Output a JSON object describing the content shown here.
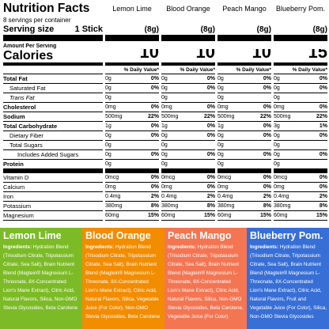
{
  "header": {
    "title": "Nutrition Facts",
    "servings": "8 servings per container",
    "serving_size_label": "Serving size",
    "serving_size": "1 Stick",
    "amount_label": "Amount Per Serving",
    "calories_label": "Calories",
    "daily_value_label": "% Daily Value*"
  },
  "nutrients": [
    "Total Fat",
    "Saturated Fat",
    "Trans Fat",
    "Cholesterol",
    "Sodium",
    "Total Carbohydrate",
    "Dietary Fiber",
    "Total Sugars",
    "Includes Added Sugars",
    "Protein",
    "Vitamin D",
    "Calcium",
    "Iron",
    "Potassium",
    "Magnesium"
  ],
  "flavors": [
    {
      "name": "Lemon Lime",
      "serving": "(8g)",
      "calories": 10,
      "values": [
        [
          "0g",
          "0%"
        ],
        [
          "0g",
          "0%"
        ],
        [
          "0g"
        ],
        [
          "0mg",
          "0%"
        ],
        [
          "500mg",
          "22%"
        ],
        [
          "1g",
          "0%"
        ],
        [
          "0g",
          "0%"
        ],
        [
          "0g"
        ],
        [
          "0g",
          "0%"
        ],
        [
          "0g"
        ],
        [
          "0mcg",
          "0%"
        ],
        [
          "0mg",
          "0%"
        ],
        [
          "0.4mg",
          "2%"
        ],
        [
          "380mg",
          "8%"
        ],
        [
          "60mg",
          "15%"
        ]
      ]
    },
    {
      "name": "Blood Orange",
      "serving": "(8g)",
      "calories": 10,
      "values": [
        [
          "0g",
          "0%"
        ],
        [
          "0g",
          "0%"
        ],
        [
          "0g"
        ],
        [
          "0mg",
          "0%"
        ],
        [
          "500mg",
          "22%"
        ],
        [
          "1g",
          "0%"
        ],
        [
          "0g",
          "0%"
        ],
        [
          "0g"
        ],
        [
          "0g",
          "0%"
        ],
        [
          "0g"
        ],
        [
          "0mcg",
          "0%"
        ],
        [
          "0mg",
          "0%"
        ],
        [
          "0.4mg",
          "2%"
        ],
        [
          "380mg",
          "8%"
        ],
        [
          "60mg",
          "15%"
        ]
      ]
    },
    {
      "name": "Peach Mango",
      "serving": "(8g)",
      "calories": 10,
      "values": [
        [
          "0g",
          "0%"
        ],
        [
          "0g",
          "0%"
        ],
        [
          "0g"
        ],
        [
          "0mg",
          "0%"
        ],
        [
          "500mg",
          "22%"
        ],
        [
          "1g",
          "0%"
        ],
        [
          "0g",
          "0%"
        ],
        [
          "0g"
        ],
        [
          "0g",
          "0%"
        ],
        [
          "0g"
        ],
        [
          "0mcg",
          "0%"
        ],
        [
          "0mg",
          "0%"
        ],
        [
          "0.4mg",
          "2%"
        ],
        [
          "380mg",
          "8%"
        ],
        [
          "60mg",
          "15%"
        ]
      ]
    },
    {
      "name": "Blueberry Pom.",
      "serving": "(8g)",
      "calories": 15,
      "values": [
        [
          "0g",
          "0%"
        ],
        [
          "0g",
          "0%"
        ],
        [
          "0g"
        ],
        [
          "0mg",
          "0%"
        ],
        [
          "500mg",
          "22%"
        ],
        [
          "3g",
          "1%"
        ],
        [
          "0g",
          "0%"
        ],
        [
          "0g"
        ],
        [
          "0g",
          "0%"
        ],
        [
          "0g"
        ],
        [
          "0mcg",
          "0%"
        ],
        [
          "0mg",
          "0%"
        ],
        [
          "0.4mg",
          "2%"
        ],
        [
          "380mg",
          "8%"
        ],
        [
          "60mg",
          "15%"
        ]
      ]
    }
  ],
  "ingredients": [
    {
      "name": "Lemon Lime",
      "label": "Ingredients:",
      "text": "Hydration Blend (Trisodium Citrate, Tripotassium Citrate, Sea Salt), Brain Nutrient Blend (Magtein® Magnesium L-Threonate, 8X-Concentrated Lion's Mane Extract), Citric Acid, Natural Flavors, Silica, Non-GMO Stevia Glycosides, Beta Carotene"
    },
    {
      "name": "Blood Orange",
      "label": "Ingredients:",
      "text": "Hydration Blend (Trisodium Citrate, Tripotassium Citrate, Sea Salt), Brain Nutrient Blend (Magtein® Magnesium L-Threonate, 8X-Concentrated Lion's Mane Extract), Citric Acid, Natural Flavors, Silica, Vegetable Juice (For Color), Non-GMO Stevia Glycosides, Beta Carotene"
    },
    {
      "name": "Peach Mango",
      "label": "Ingredients:",
      "text": "Hydration Blend (Trisodium Citrate, Tripotassium Citrate, Sea Salt), Brain Nutrient Blend (Magtein® Magnesium L-Threonate, 8X-Concentrated Lion's Mane Extract), Citric Acid, Natural Flavors, Silica, Non-GMO Stevia Glycosides, Beta Carotene, Vegetable Juice (For Color)"
    },
    {
      "name": "Blueberry Pom.",
      "label": "Ingredients:",
      "text": "Hydration Blend (Trisodium Citrate, Tripotassium Citrate, Sea Salt), Brain Nutrient Blend (Magtein® Magnesium L-Threonate, 8X-Concentrated Lion's Mane Extract), Citric Acid, Natural Flavors, Fruit and Vegetable Juice (For Color), Silica, Non-GMO Stevia Glycosides"
    }
  ]
}
